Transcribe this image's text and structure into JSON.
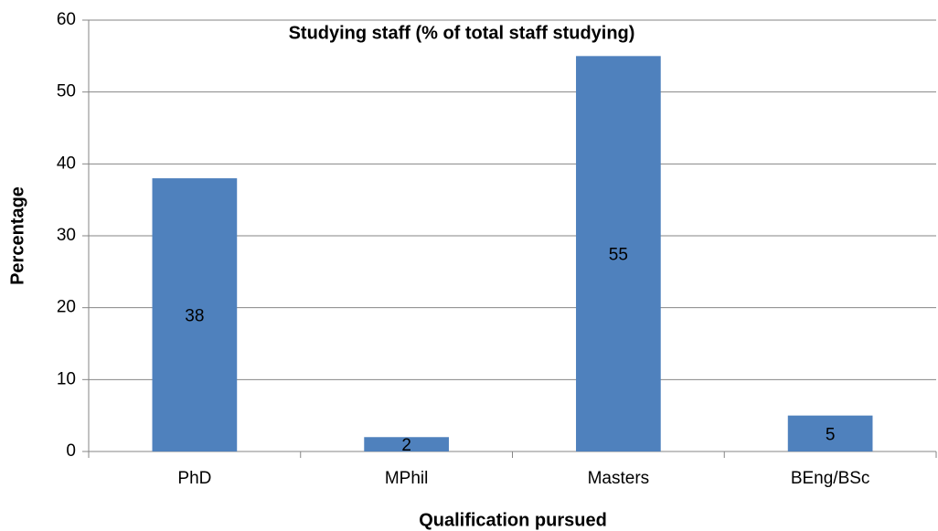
{
  "chart_data": {
    "type": "bar",
    "title": "Studying staff (% of total staff studying)",
    "x_label": "Qualification pursued",
    "y_label": "Percentage",
    "categories": [
      "PhD",
      "MPhil",
      "Masters",
      "BEng/BSc"
    ],
    "values": [
      38,
      2,
      55,
      5
    ],
    "color": "#4f81bd",
    "ylim": [
      0,
      60
    ],
    "yticks": [
      0,
      10,
      20,
      30,
      40,
      50,
      60
    ],
    "grid": true
  }
}
